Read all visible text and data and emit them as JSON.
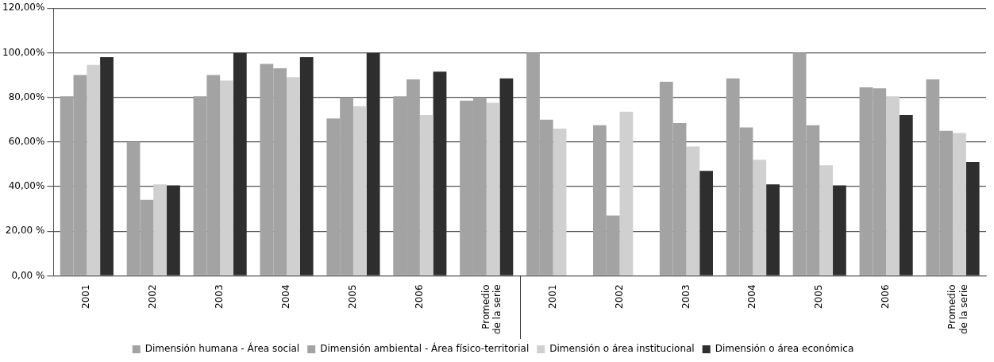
{
  "chart_data": {
    "type": "bar",
    "categories": [
      "2001",
      "2002",
      "2003",
      "2004",
      "2005",
      "2006",
      "Promedio de la serie",
      "2001",
      "2002",
      "2003",
      "2004",
      "2005",
      "2006",
      "Promedio de la serie"
    ],
    "series": [
      {
        "name": "Dimensión humana - Área social",
        "color": "#a3a3a3",
        "values": [
          80.5,
          60,
          80.5,
          95,
          70.5,
          80.5,
          78.5,
          100,
          67.5,
          87,
          88.5,
          100,
          84.5,
          88
        ]
      },
      {
        "name": "Dimensión ambiental - Área físico-territorial",
        "color": "#a3a3a3",
        "values": [
          90,
          34,
          90,
          93,
          80,
          88,
          80,
          70,
          27,
          68.5,
          66.5,
          67.5,
          84,
          65
        ]
      },
      {
        "name": "Dimensión o área institucional",
        "color": "#d0d0d0",
        "values": [
          94.5,
          41,
          87.5,
          89,
          76,
          72,
          77.5,
          66,
          73.5,
          58,
          52,
          49.5,
          80.5,
          64
        ]
      },
      {
        "name": "Dimensión o área económica",
        "color": "#2e2e2e",
        "values": [
          98,
          40.5,
          100,
          98,
          100,
          91.5,
          88.5,
          null,
          null,
          47,
          41,
          40.5,
          72,
          51
        ]
      }
    ],
    "ylim": [
      0,
      120
    ],
    "yticks": [
      {
        "value": 0,
        "label": "0,00 %"
      },
      {
        "value": 20,
        "label": "20,00 %"
      },
      {
        "value": 40,
        "label": "40,00%"
      },
      {
        "value": 60,
        "label": "60,00%"
      },
      {
        "value": 80,
        "label": "80,00%"
      },
      {
        "value": 100,
        "label": "100,00%"
      },
      {
        "value": 120,
        "label": "120,00%"
      }
    ],
    "grid": "y",
    "legend": "bottom"
  }
}
